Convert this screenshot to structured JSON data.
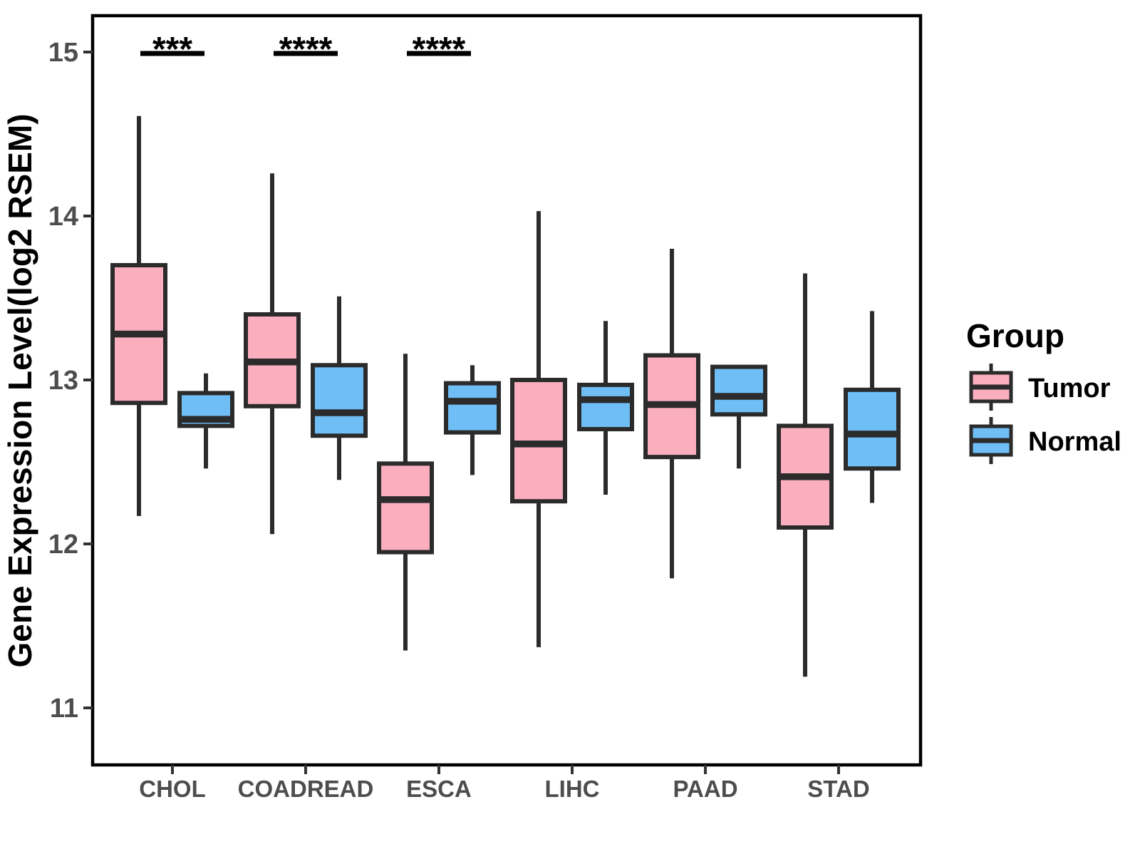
{
  "chart_data": {
    "type": "boxplot",
    "title": "",
    "xlabel": "",
    "ylabel": "Gene Expression Level(log2 RSEM)",
    "ylim": [
      10.65,
      15.22
    ],
    "yticks": [
      11,
      12,
      13,
      14,
      15
    ],
    "categories": [
      "CHOL",
      "COADREAD",
      "ESCA",
      "LIHC",
      "PAAD",
      "STAD"
    ],
    "grid": "off",
    "legend": {
      "title": "Group",
      "position": "right"
    },
    "series": [
      {
        "name": "Tumor",
        "color": "#FAAEBE",
        "boxes": [
          {
            "category": "CHOL",
            "min": 12.17,
            "q1": 12.86,
            "median": 13.28,
            "q3": 13.7,
            "max": 14.61
          },
          {
            "category": "COADREAD",
            "min": 12.06,
            "q1": 12.84,
            "median": 13.11,
            "q3": 13.4,
            "max": 14.26
          },
          {
            "category": "ESCA",
            "min": 11.35,
            "q1": 11.95,
            "median": 12.27,
            "q3": 12.49,
            "max": 13.16
          },
          {
            "category": "LIHC",
            "min": 11.37,
            "q1": 12.26,
            "median": 12.61,
            "q3": 13.0,
            "max": 14.03
          },
          {
            "category": "PAAD",
            "min": 11.79,
            "q1": 12.53,
            "median": 12.85,
            "q3": 13.15,
            "max": 13.8
          },
          {
            "category": "STAD",
            "min": 11.19,
            "q1": 12.1,
            "median": 12.41,
            "q3": 12.72,
            "max": 13.65
          }
        ]
      },
      {
        "name": "Normal",
        "color": "#6FBEF5",
        "boxes": [
          {
            "category": "CHOL",
            "min": 12.46,
            "q1": 12.72,
            "median": 12.76,
            "q3": 12.92,
            "max": 13.04
          },
          {
            "category": "COADREAD",
            "min": 12.39,
            "q1": 12.66,
            "median": 12.8,
            "q3": 13.09,
            "max": 13.51
          },
          {
            "category": "ESCA",
            "min": 12.42,
            "q1": 12.68,
            "median": 12.87,
            "q3": 12.98,
            "max": 13.09
          },
          {
            "category": "LIHC",
            "min": 12.3,
            "q1": 12.7,
            "median": 12.88,
            "q3": 12.97,
            "max": 13.36
          },
          {
            "category": "PAAD",
            "min": 12.46,
            "q1": 12.79,
            "median": 12.9,
            "q3": 13.08,
            "max": 13.08
          },
          {
            "category": "STAD",
            "min": 12.25,
            "q1": 12.46,
            "median": 12.67,
            "q3": 12.94,
            "max": 13.42
          }
        ]
      }
    ],
    "significance": [
      {
        "category": "CHOL",
        "label": "***"
      },
      {
        "category": "COADREAD",
        "label": "****"
      },
      {
        "category": "ESCA",
        "label": "****"
      }
    ],
    "styles": {
      "tumor_fill": "#FAAEBE",
      "normal_fill": "#6FBEF5",
      "box_stroke": "#2B2B2B",
      "axis_text": "#4D4D4D",
      "panel_border": "#000000",
      "annotation_color": "#000000",
      "background": "#FFFFFF"
    }
  }
}
